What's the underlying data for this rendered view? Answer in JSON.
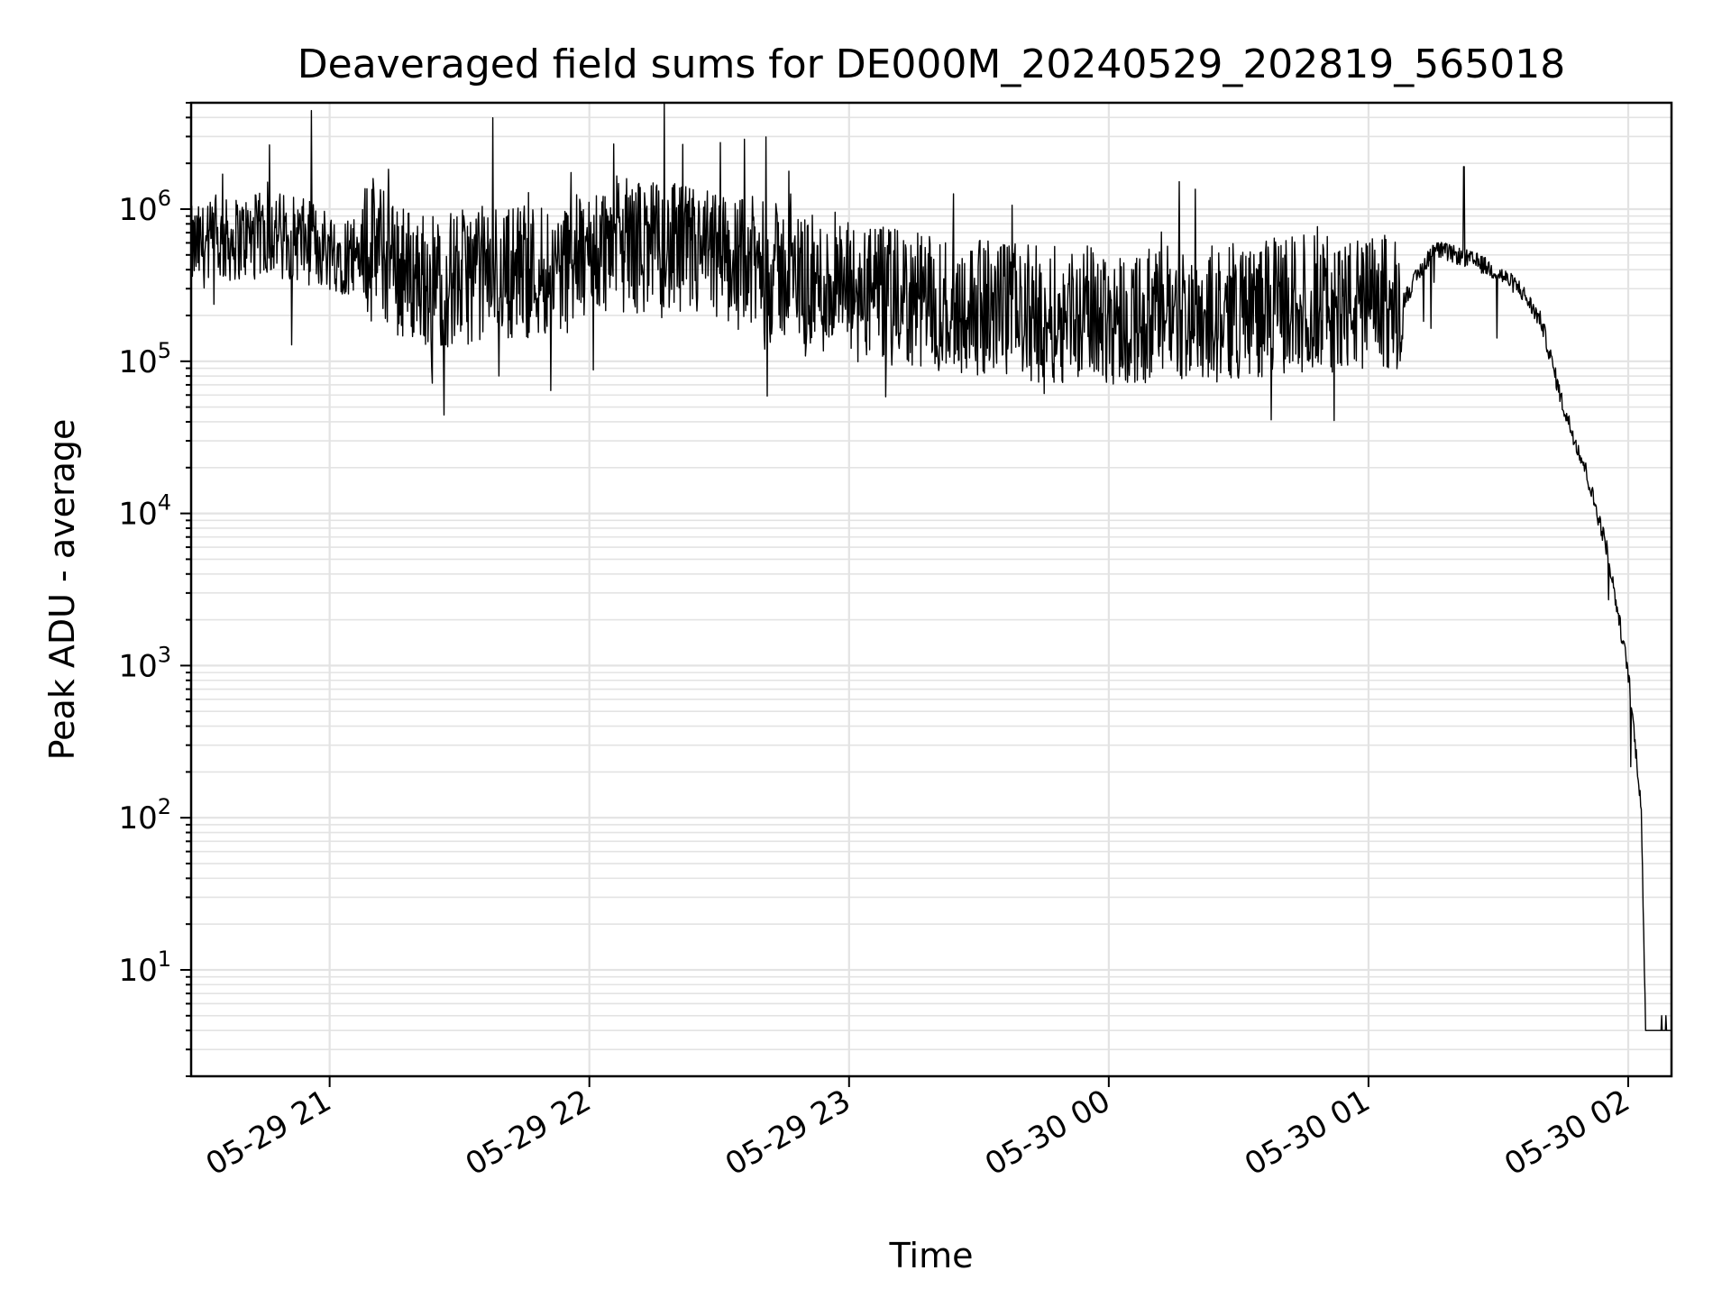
{
  "chart_data": {
    "type": "line",
    "title": "Deaveraged field sums for DE000M_20240529_202819_565018",
    "xlabel": "Time",
    "ylabel": "Peak ADU - average",
    "yscale": "log",
    "ylim": [
      2,
      5000000
    ],
    "xlim": [
      "2024-05-29 20:28",
      "2024-05-30 02:10"
    ],
    "x_ticks": [
      "05-29 21",
      "05-29 22",
      "05-29 23",
      "05-30 00",
      "05-30 01",
      "05-30 02"
    ],
    "y_ticks": [
      "10^1",
      "10^2",
      "10^3",
      "10^4",
      "10^5",
      "10^6"
    ],
    "grid": true,
    "line_color": "#000000",
    "series": [
      {
        "x": [
          "2024-05-29 20:28",
          "2024-05-29 20:40",
          "2024-05-29 20:48",
          "2024-05-29 20:55",
          "2024-05-29 21:05",
          "2024-05-29 21:10",
          "2024-05-29 21:15",
          "2024-05-29 21:25",
          "2024-05-29 21:35",
          "2024-05-29 21:45",
          "2024-05-29 21:55",
          "2024-05-29 22:05",
          "2024-05-29 22:15",
          "2024-05-29 22:25",
          "2024-05-29 22:35",
          "2024-05-29 22:45",
          "2024-05-29 22:55",
          "2024-05-29 23:05",
          "2024-05-29 23:15",
          "2024-05-29 23:25",
          "2024-05-29 23:35",
          "2024-05-29 23:45",
          "2024-05-29 23:55",
          "2024-05-30 00:05",
          "2024-05-30 00:15",
          "2024-05-30 00:25",
          "2024-05-30 00:35",
          "2024-05-30 00:45",
          "2024-05-30 00:55",
          "2024-05-30 01:08",
          "2024-05-30 01:15",
          "2024-05-30 01:20",
          "2024-05-30 01:25",
          "2024-05-30 01:30",
          "2024-05-30 01:35",
          "2024-05-30 01:40",
          "2024-05-30 01:45",
          "2024-05-30 01:50",
          "2024-05-30 01:55",
          "2024-05-30 02:00",
          "2024-05-30 02:03",
          "2024-05-30 02:04",
          "2024-05-30 02:05",
          "2024-05-30 02:10"
        ],
        "y": [
          550000,
          650000,
          700000,
          600000,
          500000,
          600000,
          400000,
          330000,
          380000,
          400000,
          420000,
          600000,
          550000,
          500000,
          450000,
          380000,
          300000,
          280000,
          250000,
          230000,
          220000,
          200000,
          210000,
          190000,
          200000,
          210000,
          220000,
          250000,
          230000,
          250000,
          550000,
          500000,
          450000,
          380000,
          300000,
          180000,
          50000,
          20000,
          6000,
          900,
          120,
          4,
          4,
          4
        ]
      }
    ]
  }
}
